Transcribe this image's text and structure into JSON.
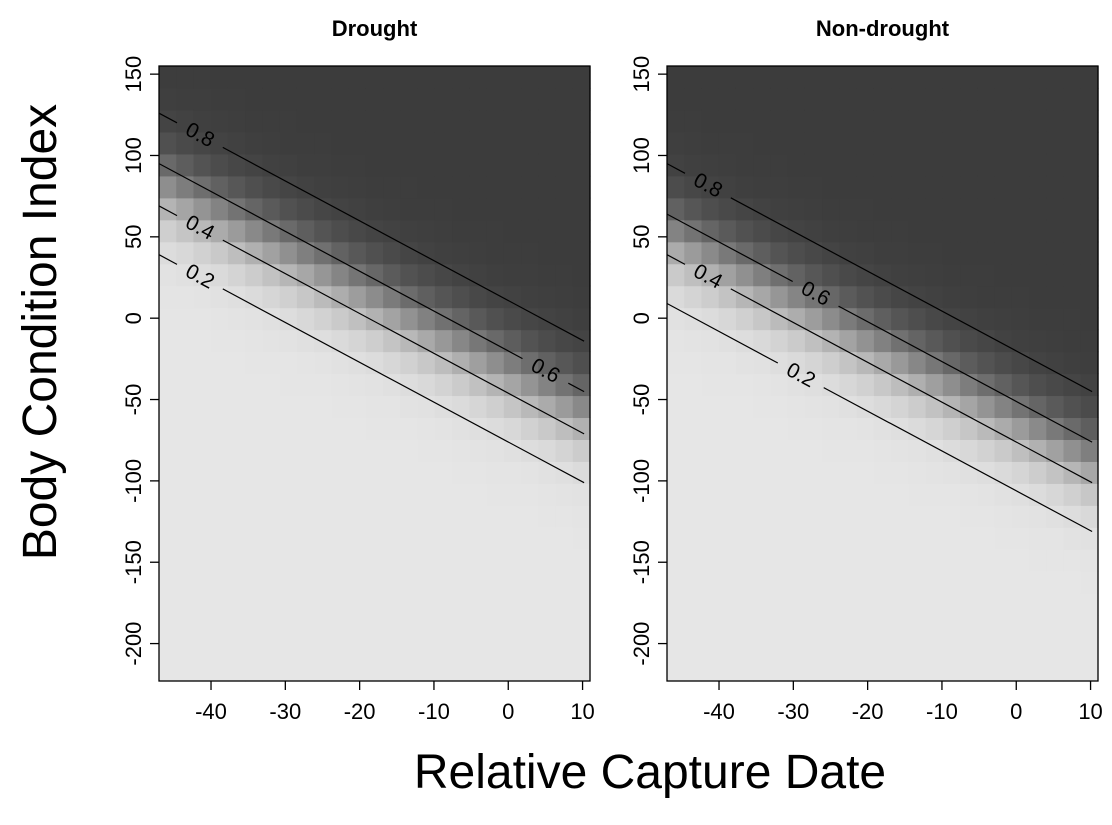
{
  "chart_data": {
    "type": "heatmap",
    "xlabel": "Relative Capture Date",
    "ylabel": "Body Condition Index",
    "xlim": [
      -47,
      11
    ],
    "ylim": [
      -223,
      155
    ],
    "x_ticks": [
      -40,
      -30,
      -20,
      -10,
      0,
      10
    ],
    "y_ticks": [
      -200,
      -150,
      -100,
      -50,
      0,
      50,
      100,
      150
    ],
    "colors": {
      "low": "#e6e6e6",
      "high": "#3c3c3c",
      "contour": "#000000"
    },
    "contour_levels": [
      0.2,
      0.4,
      0.6,
      0.8
    ],
    "panels": [
      {
        "title": "Drought",
        "contours": [
          {
            "level": 0.8,
            "y_at_xmin": 126,
            "slope": -2.45,
            "label": "0.8"
          },
          {
            "level": 0.6,
            "y_at_xmin": 95,
            "slope": -2.45,
            "label": "0.6"
          },
          {
            "level": 0.4,
            "y_at_xmin": 69,
            "slope": -2.45,
            "label": "0.4"
          },
          {
            "level": 0.2,
            "y_at_xmin": 39,
            "slope": -2.45,
            "label": "0.2"
          }
        ]
      },
      {
        "title": "Non-drought",
        "contours": [
          {
            "level": 0.8,
            "y_at_xmin": 95,
            "slope": -2.45,
            "label": "0.8"
          },
          {
            "level": 0.6,
            "y_at_xmin": 64,
            "slope": -2.45,
            "label": "0.6"
          },
          {
            "level": 0.4,
            "y_at_xmin": 39,
            "slope": -2.45,
            "label": "0.4"
          },
          {
            "level": 0.2,
            "y_at_xmin": 9,
            "slope": -2.45,
            "label": "0.2"
          }
        ]
      }
    ]
  }
}
